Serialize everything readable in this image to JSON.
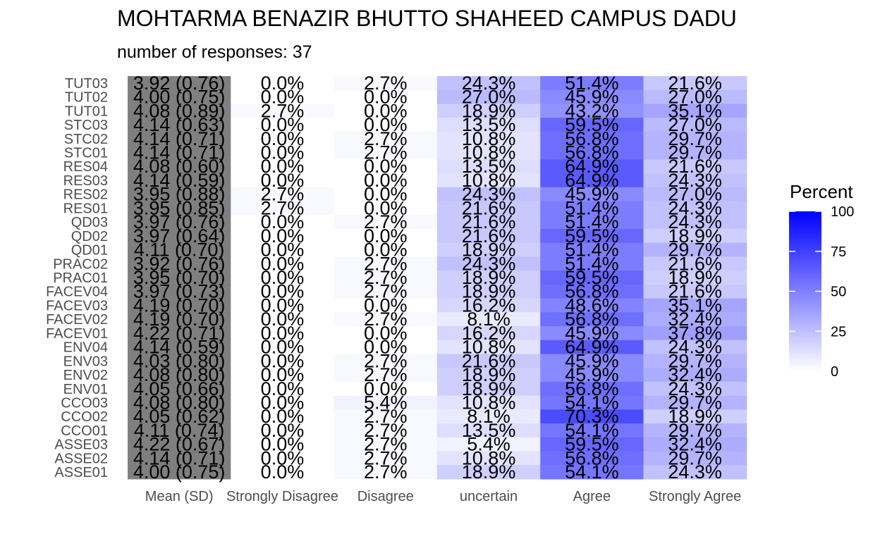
{
  "title": "MOHTARMA BENAZIR BHUTTO SHAHEED CAMPUS DADU",
  "subtitle": "number of responses: 37",
  "chart_data": {
    "type": "heatmap",
    "columns": [
      "Mean (SD)",
      "Strongly Disagree",
      "Disagree",
      "uncertain",
      "Agree",
      "Strongly Agree"
    ],
    "rows": [
      "TUT03",
      "TUT02",
      "TUT01",
      "STC03",
      "STC02",
      "STC01",
      "RES04",
      "RES03",
      "RES02",
      "RES01",
      "QD03",
      "QD02",
      "QD01",
      "PRAC02",
      "PRAC01",
      "FACEV04",
      "FACEV03",
      "FACEV02",
      "FACEV01",
      "ENV04",
      "ENV03",
      "ENV02",
      "ENV01",
      "CCO03",
      "CCO02",
      "CCO01",
      "ASSE03",
      "ASSE02",
      "ASSE01"
    ],
    "mean_sd": [
      "3.92 (0.76)",
      "4.00 (0.75)",
      "4.08 (0.89)",
      "4.14 (0.63)",
      "4.14 (0.71)",
      "4.14 (0.71)",
      "4.08 (0.60)",
      "4.14 (0.59)",
      "3.95 (0.88)",
      "3.95 (0.85)",
      "3.97 (0.76)",
      "3.97 (0.64)",
      "4.11 (0.70)",
      "3.92 (0.76)",
      "3.95 (0.70)",
      "3.97 (0.73)",
      "4.19 (0.70)",
      "4.19 (0.70)",
      "4.22 (0.71)",
      "4.14 (0.59)",
      "4.03 (0.80)",
      "4.08 (0.80)",
      "4.05 (0.66)",
      "4.08 (0.80)",
      "4.05 (0.62)",
      "4.11 (0.74)",
      "4.22 (0.67)",
      "4.14 (0.71)",
      "4.00 (0.75)"
    ],
    "percent": [
      [
        0.0,
        2.7,
        24.3,
        51.4,
        21.6
      ],
      [
        0.0,
        0.0,
        27.0,
        45.9,
        27.0
      ],
      [
        2.7,
        0.0,
        18.9,
        43.2,
        35.1
      ],
      [
        0.0,
        0.0,
        13.5,
        59.5,
        27.0
      ],
      [
        0.0,
        2.7,
        10.8,
        56.8,
        29.7
      ],
      [
        0.0,
        2.7,
        10.8,
        56.8,
        29.7
      ],
      [
        0.0,
        0.0,
        13.5,
        64.9,
        21.6
      ],
      [
        0.0,
        0.0,
        10.8,
        64.9,
        24.3
      ],
      [
        2.7,
        0.0,
        24.3,
        45.9,
        27.0
      ],
      [
        2.7,
        0.0,
        21.6,
        51.4,
        24.3
      ],
      [
        0.0,
        2.7,
        21.6,
        51.4,
        24.3
      ],
      [
        0.0,
        0.0,
        21.6,
        59.5,
        18.9
      ],
      [
        0.0,
        0.0,
        18.9,
        51.4,
        29.7
      ],
      [
        0.0,
        2.7,
        24.3,
        51.4,
        21.6
      ],
      [
        0.0,
        2.7,
        18.9,
        59.5,
        18.9
      ],
      [
        0.0,
        2.7,
        18.9,
        56.8,
        21.6
      ],
      [
        0.0,
        0.0,
        16.2,
        48.6,
        35.1
      ],
      [
        0.0,
        2.7,
        8.1,
        56.8,
        32.4
      ],
      [
        0.0,
        0.0,
        16.2,
        45.9,
        37.8
      ],
      [
        0.0,
        0.0,
        10.8,
        64.9,
        24.3
      ],
      [
        0.0,
        2.7,
        21.6,
        45.9,
        29.7
      ],
      [
        0.0,
        2.7,
        18.9,
        45.9,
        32.4
      ],
      [
        0.0,
        0.0,
        18.9,
        56.8,
        24.3
      ],
      [
        0.0,
        5.4,
        10.8,
        54.1,
        29.7
      ],
      [
        0.0,
        2.7,
        8.1,
        70.3,
        18.9
      ],
      [
        0.0,
        2.7,
        13.5,
        54.1,
        29.7
      ],
      [
        0.0,
        2.7,
        5.4,
        59.5,
        32.4
      ],
      [
        0.0,
        2.7,
        10.8,
        56.8,
        29.7
      ],
      [
        0.0,
        2.7,
        18.9,
        54.1,
        24.3
      ]
    ],
    "legend": {
      "title": "Percent",
      "ticks": [
        0,
        25,
        50,
        75,
        100
      ],
      "low_color": "#ffffff",
      "high_color": "#0000ff",
      "position": "right"
    },
    "mean_column_color": "#7f7f7f"
  }
}
